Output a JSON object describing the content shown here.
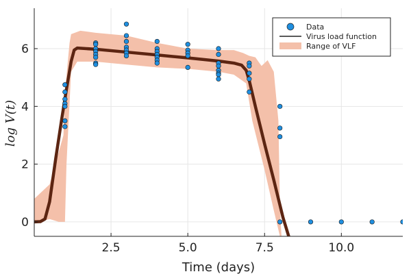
{
  "chart_data": {
    "type": "scatter",
    "title": "",
    "xlabel": "Time (days)",
    "ylabel": "log V(t)",
    "xlim": [
      0,
      12
    ],
    "ylim": [
      -0.5,
      7.4
    ],
    "xticks": [
      2.5,
      5.0,
      7.5,
      10.0
    ],
    "xtick_labels": [
      "2.5",
      "5.0",
      "7.5",
      "10.0"
    ],
    "yticks": [
      0,
      2,
      4,
      6
    ],
    "ytick_labels": [
      "0",
      "2",
      "4",
      "6"
    ],
    "grid": true,
    "legend_position": "top-right",
    "legend": [
      "Data",
      "Virus load function",
      "Range of VLF"
    ],
    "colors": {
      "data": "#1f8fe0",
      "vlf": "#5c2512",
      "range": "#f4c0aa",
      "axis": "#222222",
      "grid": "#e6e6e6"
    },
    "series": [
      {
        "name": "Data",
        "kind": "scatter",
        "points": [
          [
            1,
            4.75
          ],
          [
            1,
            4.5
          ],
          [
            1,
            4.25
          ],
          [
            1,
            4.1
          ],
          [
            1,
            4.0
          ],
          [
            1,
            3.5
          ],
          [
            1,
            3.3
          ],
          [
            2,
            6.2
          ],
          [
            2,
            6.15
          ],
          [
            2,
            6.0
          ],
          [
            2,
            5.9
          ],
          [
            2,
            5.8
          ],
          [
            2,
            5.7
          ],
          [
            2,
            5.5
          ],
          [
            2,
            5.45
          ],
          [
            3,
            6.85
          ],
          [
            3,
            6.45
          ],
          [
            3,
            6.25
          ],
          [
            3,
            6.05
          ],
          [
            3,
            5.95
          ],
          [
            3,
            5.85
          ],
          [
            3,
            5.75
          ],
          [
            4,
            6.25
          ],
          [
            4,
            6.0
          ],
          [
            4,
            5.9
          ],
          [
            4,
            5.8
          ],
          [
            4,
            5.7
          ],
          [
            4,
            5.6
          ],
          [
            4,
            5.5
          ],
          [
            5,
            6.15
          ],
          [
            5,
            5.95
          ],
          [
            5,
            5.85
          ],
          [
            5,
            5.75
          ],
          [
            5,
            5.35
          ],
          [
            6,
            6.0
          ],
          [
            6,
            5.8
          ],
          [
            6,
            5.5
          ],
          [
            6,
            5.4
          ],
          [
            6,
            5.25
          ],
          [
            6,
            5.15
          ],
          [
            6,
            5.1
          ],
          [
            6,
            4.95
          ],
          [
            7,
            5.5
          ],
          [
            7,
            5.4
          ],
          [
            7,
            5.15
          ],
          [
            7,
            4.95
          ],
          [
            7,
            4.5
          ],
          [
            8,
            4.0
          ],
          [
            8,
            3.25
          ],
          [
            8,
            2.95
          ],
          [
            8,
            0
          ],
          [
            9,
            0
          ],
          [
            10,
            0
          ],
          [
            11,
            0
          ],
          [
            12,
            0
          ]
        ]
      },
      {
        "name": "Virus load function",
        "kind": "line",
        "points": [
          [
            0,
            0
          ],
          [
            0.2,
            0.01
          ],
          [
            0.35,
            0.1
          ],
          [
            0.5,
            0.7
          ],
          [
            0.7,
            2.2
          ],
          [
            0.9,
            3.6
          ],
          [
            1.05,
            4.6
          ],
          [
            1.2,
            5.55
          ],
          [
            1.3,
            5.95
          ],
          [
            1.4,
            6.02
          ],
          [
            2,
            5.98
          ],
          [
            3,
            5.88
          ],
          [
            4,
            5.78
          ],
          [
            5,
            5.68
          ],
          [
            6,
            5.57
          ],
          [
            6.5,
            5.5
          ],
          [
            6.75,
            5.43
          ],
          [
            6.9,
            5.25
          ],
          [
            7.0,
            4.9
          ],
          [
            7.2,
            4.0
          ],
          [
            7.5,
            2.7
          ],
          [
            7.8,
            1.45
          ],
          [
            8.1,
            0.15
          ],
          [
            8.3,
            -0.55
          ]
        ]
      },
      {
        "name": "Range of VLF",
        "kind": "band",
        "upper": [
          [
            0,
            0.8
          ],
          [
            0.5,
            1.3
          ],
          [
            0.95,
            3.0
          ],
          [
            1.0,
            4.5
          ],
          [
            1.15,
            6.2
          ],
          [
            1.2,
            6.5
          ],
          [
            1.5,
            6.62
          ],
          [
            2,
            6.55
          ],
          [
            3,
            6.45
          ],
          [
            4,
            6.2
          ],
          [
            5,
            6.0
          ],
          [
            6,
            5.95
          ],
          [
            6.5,
            5.95
          ],
          [
            6.8,
            5.85
          ],
          [
            7.0,
            5.75
          ],
          [
            7.2,
            5.7
          ],
          [
            7.4,
            5.4
          ],
          [
            7.6,
            5.6
          ],
          [
            7.8,
            5.2
          ],
          [
            7.95,
            3.5
          ],
          [
            8.0,
            0.5
          ],
          [
            8.05,
            -0.5
          ]
        ],
        "lower": [
          [
            0,
            -0.05
          ],
          [
            0.5,
            0.1
          ],
          [
            0.8,
            0.0
          ],
          [
            0.9,
            0.0
          ],
          [
            1.0,
            0.0
          ],
          [
            1.05,
            2.0
          ],
          [
            1.2,
            5.2
          ],
          [
            1.4,
            5.55
          ],
          [
            2,
            5.55
          ],
          [
            3,
            5.45
          ],
          [
            4,
            5.35
          ],
          [
            5,
            5.3
          ],
          [
            6,
            5.2
          ],
          [
            6.5,
            5.1
          ],
          [
            6.9,
            4.8
          ],
          [
            7.1,
            3.5
          ],
          [
            7.5,
            1.8
          ],
          [
            7.8,
            0.4
          ],
          [
            8.0,
            -0.5
          ]
        ]
      }
    ]
  }
}
